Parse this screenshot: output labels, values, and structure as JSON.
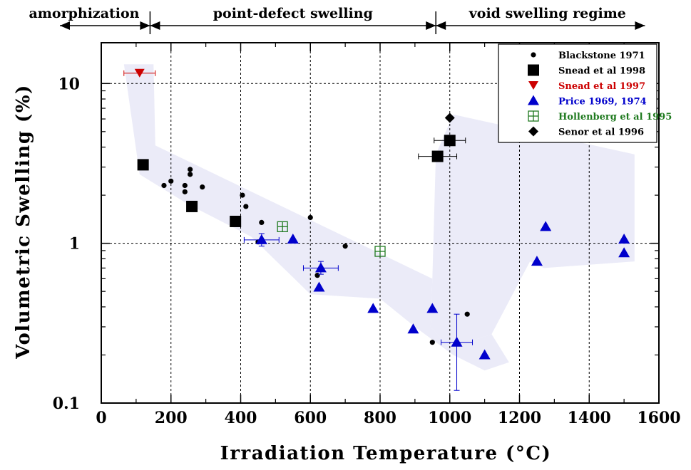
{
  "chart_data": {
    "type": "scatter",
    "xlabel": "Irradiation  Temperature  (°C)",
    "ylabel": "Volumetric  Swelling  (%)",
    "x_scale": "linear",
    "y_scale": "log",
    "xlim": [
      0,
      1600
    ],
    "ylim": [
      0.1,
      18
    ],
    "x_ticks": [
      0,
      200,
      400,
      600,
      800,
      1000,
      1200,
      1400,
      1600
    ],
    "y_ticks": [
      {
        "value": 0.1,
        "label": "0.1"
      },
      {
        "value": 1,
        "label": "1"
      },
      {
        "value": 10,
        "label": "10"
      }
    ],
    "grid": {
      "vertical": [
        200,
        400,
        600,
        800,
        1000,
        1200,
        1400
      ],
      "horizontal": [
        1,
        10
      ]
    },
    "regimes": [
      {
        "label": "amorphization",
        "x_start": 0,
        "x_end": 140
      },
      {
        "label": "point-defect swelling",
        "x_start": 140,
        "x_end": 960
      },
      {
        "label": "void swelling regime",
        "x_start": 960,
        "x_end": 1560
      }
    ],
    "band_color": "#ebebf8",
    "bands": [
      [
        [
          65,
          13.2
        ],
        [
          150,
          13.2
        ],
        [
          155,
          4.1
        ],
        [
          950,
          0.6
        ],
        [
          945,
          0.3
        ],
        [
          1000,
          0.22
        ],
        [
          1120,
          0.27
        ],
        [
          1170,
          0.18
        ],
        [
          1100,
          0.16
        ],
        [
          1010,
          0.2
        ],
        [
          900,
          0.3
        ],
        [
          800,
          0.45
        ],
        [
          600,
          0.48
        ],
        [
          430,
          1.1
        ],
        [
          250,
          1.75
        ],
        [
          110,
          2.7
        ]
      ],
      [
        [
          950,
          0.6
        ],
        [
          960,
          3.6
        ],
        [
          1010,
          6.4
        ],
        [
          1530,
          3.6
        ],
        [
          1530,
          0.77
        ],
        [
          1270,
          0.7
        ],
        [
          1230,
          0.77
        ],
        [
          1120,
          0.27
        ],
        [
          1000,
          0.22
        ],
        [
          945,
          0.3
        ]
      ]
    ],
    "legend_position": "top-right",
    "series": [
      {
        "name": "Blackstone 1971",
        "marker": "dot",
        "color": "#000000",
        "points": [
          [
            180,
            2.3
          ],
          [
            200,
            2.45
          ],
          [
            240,
            2.3
          ],
          [
            240,
            2.1
          ],
          [
            255,
            2.9
          ],
          [
            255,
            2.7
          ],
          [
            290,
            2.25
          ],
          [
            405,
            2.0
          ],
          [
            415,
            1.7
          ],
          [
            460,
            1.35
          ],
          [
            450,
            1.02
          ],
          [
            600,
            1.45
          ],
          [
            700,
            0.96
          ],
          [
            620,
            0.63
          ],
          [
            950,
            0.24
          ],
          [
            1050,
            0.36
          ]
        ]
      },
      {
        "name": "Snead et al 1998",
        "marker": "square",
        "color": "#000000",
        "points": [
          {
            "x": 120,
            "y": 3.1
          },
          {
            "x": 260,
            "y": 1.7
          },
          {
            "x": 385,
            "y": 1.37
          },
          {
            "x": 965,
            "y": 3.5,
            "xerr": 55
          },
          {
            "x": 1000,
            "y": 4.4,
            "xerr": 45
          }
        ]
      },
      {
        "name": "Snead et al 1997",
        "marker": "triangle-down",
        "color": "#cc0000",
        "points": [
          {
            "x": 110,
            "y": 11.6,
            "xerr": 45
          }
        ]
      },
      {
        "name": "Price 1969, 1974",
        "marker": "triangle-up",
        "color": "#0000cc",
        "points": [
          {
            "x": 460,
            "y": 1.05,
            "xerr": 50,
            "yerr": [
              0.96,
              1.15
            ]
          },
          {
            "x": 550,
            "y": 1.06
          },
          {
            "x": 630,
            "y": 0.7,
            "xerr": 50,
            "yerr": [
              0.64,
              0.77
            ]
          },
          {
            "x": 625,
            "y": 0.53
          },
          {
            "x": 780,
            "y": 0.39
          },
          {
            "x": 895,
            "y": 0.29
          },
          {
            "x": 950,
            "y": 0.39
          },
          {
            "x": 1020,
            "y": 0.24,
            "xerr": 45,
            "yerr": [
              0.12,
              0.36
            ]
          },
          {
            "x": 1100,
            "y": 0.2
          },
          {
            "x": 1250,
            "y": 0.77
          },
          {
            "x": 1275,
            "y": 1.27
          },
          {
            "x": 1500,
            "y": 1.06
          },
          {
            "x": 1500,
            "y": 0.87
          }
        ]
      },
      {
        "name": "Hollenberg et al 1995",
        "marker": "boxed-plus",
        "color": "#1f7a1f",
        "points": [
          [
            520,
            1.27
          ],
          [
            800,
            0.89
          ]
        ]
      },
      {
        "name": "Senor et al 1996",
        "marker": "diamond",
        "color": "#000000",
        "points": [
          [
            1000,
            6.1
          ]
        ]
      }
    ]
  }
}
